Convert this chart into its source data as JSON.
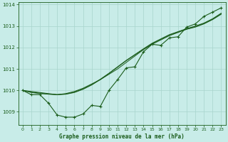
{
  "title": "Graphe pression niveau de la mer (hPa)",
  "bg_color": "#c8ece8",
  "grid_color": "#a8d4cc",
  "line_color": "#1a5c1a",
  "xlim": [
    -0.5,
    23.5
  ],
  "ylim": [
    1008.4,
    1014.1
  ],
  "yticks": [
    1009,
    1010,
    1011,
    1012,
    1013,
    1014
  ],
  "xticks": [
    0,
    1,
    2,
    3,
    4,
    5,
    6,
    7,
    8,
    9,
    10,
    11,
    12,
    13,
    14,
    15,
    16,
    17,
    18,
    19,
    20,
    21,
    22,
    23
  ],
  "series_detail": [
    1010.0,
    1009.8,
    1009.8,
    1009.4,
    1008.85,
    1008.75,
    1008.75,
    1008.9,
    1009.3,
    1009.25,
    1010.0,
    1010.5,
    1011.05,
    1011.1,
    1011.8,
    1012.15,
    1012.1,
    1012.45,
    1012.5,
    1012.95,
    1013.1,
    1013.45,
    1013.65,
    1013.85
  ],
  "series_smooth1": [
    1010.0,
    1009.95,
    1009.9,
    1009.85,
    1009.8,
    1009.85,
    1009.95,
    1010.1,
    1010.3,
    1010.5,
    1010.75,
    1011.0,
    1011.3,
    1011.6,
    1011.9,
    1012.15,
    1012.35,
    1012.55,
    1012.7,
    1012.85,
    1012.95,
    1013.1,
    1013.3,
    1013.55
  ],
  "series_smooth2": [
    1010.0,
    1009.9,
    1009.85,
    1009.82,
    1009.8,
    1009.82,
    1009.9,
    1010.05,
    1010.25,
    1010.5,
    1010.78,
    1011.08,
    1011.38,
    1011.65,
    1011.92,
    1012.18,
    1012.38,
    1012.58,
    1012.72,
    1012.86,
    1012.98,
    1013.12,
    1013.32,
    1013.58
  ],
  "series_smooth3": [
    1010.0,
    1009.92,
    1009.87,
    1009.83,
    1009.8,
    1009.83,
    1009.92,
    1010.07,
    1010.27,
    1010.52,
    1010.8,
    1011.1,
    1011.4,
    1011.67,
    1011.94,
    1012.2,
    1012.4,
    1012.6,
    1012.74,
    1012.88,
    1013.0,
    1013.14,
    1013.34,
    1013.6
  ]
}
